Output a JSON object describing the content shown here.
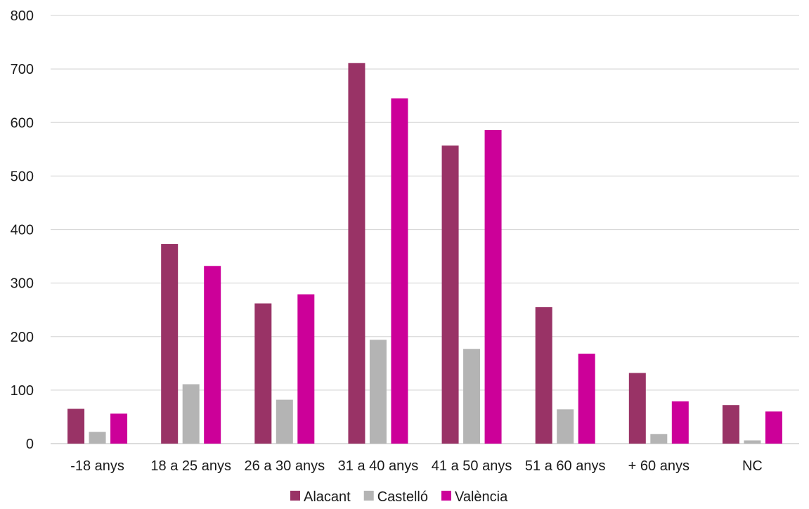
{
  "chart_data": {
    "type": "bar",
    "categories": [
      "-18 anys",
      "18 a 25 anys",
      "26 a 30 anys",
      "31 a 40 anys",
      "41 a 50 anys",
      "51 a 60 anys",
      "+ 60 anys",
      "NC"
    ],
    "series": [
      {
        "name": "Alacant",
        "color": "#993366",
        "values": [
          65,
          373,
          262,
          711,
          557,
          255,
          132,
          72
        ]
      },
      {
        "name": "Castelló",
        "color": "#b4b4b4",
        "values": [
          22,
          111,
          82,
          194,
          177,
          64,
          18,
          6
        ]
      },
      {
        "name": "València",
        "color": "#cc0099",
        "values": [
          56,
          332,
          279,
          645,
          586,
          168,
          79,
          60
        ]
      }
    ],
    "ylim": [
      0,
      800
    ],
    "yticks": [
      "0",
      "100",
      "200",
      "300",
      "400",
      "500",
      "600",
      "700",
      "800"
    ],
    "grid": true,
    "legend_position": "bottom"
  }
}
